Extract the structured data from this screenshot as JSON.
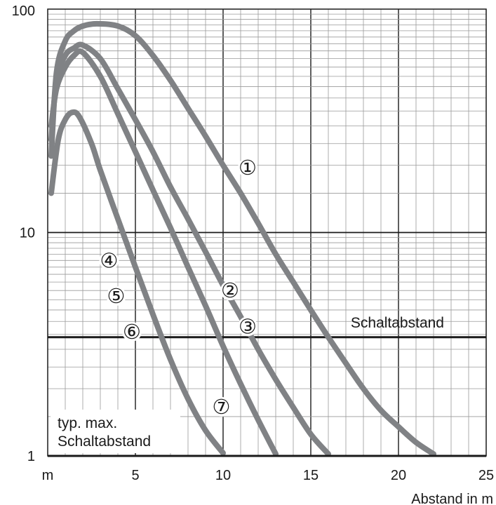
{
  "chart_data": {
    "type": "line",
    "title": "",
    "xlabel": "Abstand in m",
    "ylabel": "",
    "x_unit_label": "m",
    "xlim": [
      0,
      25
    ],
    "ylim": [
      1,
      100
    ],
    "y_scale": "log",
    "x_scale": "linear",
    "grid": true,
    "x_ticks": [
      {
        "value": 0,
        "label": "m"
      },
      {
        "value": 5,
        "label": "5"
      },
      {
        "value": 10,
        "label": "10"
      },
      {
        "value": 15,
        "label": "15"
      },
      {
        "value": 20,
        "label": "20"
      },
      {
        "value": 25,
        "label": "25"
      }
    ],
    "y_ticks": [
      {
        "value": 1,
        "label": "1"
      },
      {
        "value": 10,
        "label": "10"
      },
      {
        "value": 100,
        "label": "100"
      }
    ],
    "series": [
      {
        "name": "①",
        "x": [
          0.2,
          0.5,
          1.0,
          1.5,
          2.0,
          2.8,
          4.0,
          5.0,
          6.0,
          7.0,
          8.0,
          9.0,
          10.0,
          11.0,
          12.0,
          13.0,
          14.0,
          15.0,
          16.0,
          17.0,
          18.0,
          19.0,
          20.0,
          21.0,
          22.0
        ],
        "y": [
          22,
          52,
          72,
          80,
          84,
          86,
          84,
          76,
          62,
          48,
          36,
          27,
          20,
          15,
          11,
          8.0,
          6.0,
          4.5,
          3.4,
          2.6,
          2.0,
          1.6,
          1.35,
          1.15,
          1.02
        ]
      },
      {
        "name": "②",
        "x": [
          0.2,
          0.5,
          1.0,
          1.5,
          2.0,
          3.0,
          4.0,
          5.0,
          6.0,
          7.0,
          8.0,
          9.0,
          10.0,
          11.0,
          12.0,
          13.0,
          14.0,
          15.0,
          16.0
        ],
        "y": [
          26,
          48,
          62,
          67,
          69,
          60,
          44,
          32,
          23,
          16,
          11.5,
          8.2,
          5.8,
          4.2,
          3.0,
          2.2,
          1.65,
          1.25,
          1.02
        ]
      },
      {
        "name": "③",
        "x": [
          0.2,
          0.5,
          1.0,
          1.5,
          2.0,
          3.0,
          4.0,
          5.0,
          6.0,
          7.0,
          8.0,
          9.0,
          10.0,
          11.0,
          12.0,
          13.0
        ],
        "y": [
          30,
          44,
          55,
          62,
          64,
          50,
          34,
          23,
          15.5,
          10.5,
          7.0,
          4.7,
          3.1,
          2.1,
          1.45,
          1.02
        ]
      },
      {
        "name": "④",
        "x": [
          0.2,
          0.6,
          1.0,
          1.4,
          1.8,
          2.5,
          3.0,
          4.0,
          5.0,
          6.0,
          7.0,
          8.0,
          9.0,
          10.0
        ],
        "y": [
          15,
          26,
          32,
          34.5,
          33,
          25,
          19,
          11.5,
          7.0,
          4.3,
          2.7,
          1.8,
          1.3,
          1.03
        ]
      }
    ],
    "reference_lines": [
      {
        "axis": "y",
        "value": 3.4,
        "label": "Schaltabstand"
      }
    ],
    "curve_labels": [
      {
        "text": "①",
        "x": 11.4,
        "y": 19.5
      },
      {
        "text": "②",
        "x": 10.4,
        "y": 5.5
      },
      {
        "text": "③",
        "x": 11.4,
        "y": 3.8
      },
      {
        "text": "④",
        "x": 3.5,
        "y": 7.5
      },
      {
        "text": "⑤",
        "x": 3.9,
        "y": 5.2
      },
      {
        "text": "⑥",
        "x": 4.8,
        "y": 3.6
      },
      {
        "text": "⑦",
        "x": 9.9,
        "y": 1.66
      }
    ],
    "annotation": {
      "line1": "typ. max.",
      "line2": "Schaltabstand"
    }
  },
  "colors": {
    "curve": "#808285",
    "grid": "#9a9a9a",
    "major_grid": "#1a1a1a",
    "frame": "#1a1a1a",
    "text": "#1a1a1a",
    "reference_line": "#1a1a1a"
  }
}
